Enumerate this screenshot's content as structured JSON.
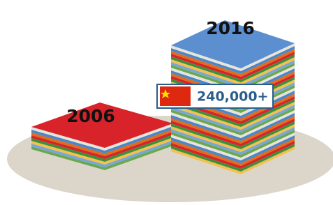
{
  "stacks": [
    {
      "label": "2006"
    },
    {
      "label": "2016"
    }
  ],
  "callout": {
    "text": "240,000+"
  }
}
